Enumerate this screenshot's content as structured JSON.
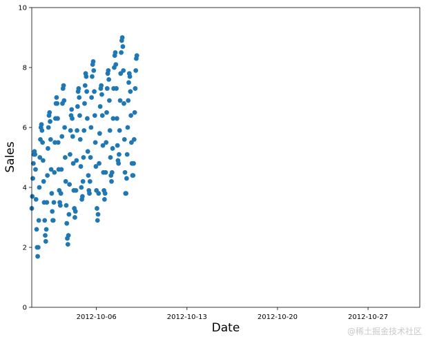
{
  "chart_data": {
    "type": "scatter",
    "title": "",
    "xlabel": "Date",
    "ylabel": "Sales",
    "x_start": "2012-10-01 00:00",
    "x_end": "2012-10-31 00:00",
    "xlim": [
      "2012-10-01",
      "2012-10-31"
    ],
    "ylim": [
      0,
      10
    ],
    "x_tick_labels": [
      "2012-10-06",
      "2012-10-13",
      "2012-10-20",
      "2012-10-27"
    ],
    "y_tick_labels": [
      "0",
      "2",
      "4",
      "6",
      "8",
      "10"
    ],
    "marker_color": "#1f77b4",
    "grid": false,
    "hourly_values": [
      3.3,
      3.7,
      4.3,
      4.8,
      5.1,
      5.2,
      5.1,
      4.6,
      3.6,
      2.6,
      2.0,
      1.7,
      2.0,
      2.9,
      4.0,
      5.0,
      5.6,
      6.0,
      6.1,
      5.9,
      5.5,
      4.9,
      4.2,
      3.5,
      2.9,
      2.4,
      2.2,
      2.6,
      3.5,
      4.4,
      5.3,
      6.0,
      6.4,
      6.5,
      6.2,
      5.6,
      4.6,
      3.8,
      3.2,
      2.9,
      2.9,
      3.5,
      4.5,
      5.5,
      6.3,
      6.8,
      7.0,
      6.8,
      6.3,
      5.5,
      4.6,
      3.9,
      3.5,
      3.4,
      3.8,
      4.6,
      5.7,
      6.8,
      7.3,
      7.4,
      6.9,
      6.0,
      5.0,
      4.2,
      3.4,
      2.8,
      2.3,
      2.1,
      2.4,
      3.1,
      4.1,
      5.1,
      5.9,
      6.4,
      6.6,
      6.3,
      5.7,
      4.8,
      3.9,
      3.3,
      3.0,
      3.2,
      3.9,
      4.9,
      5.9,
      6.7,
      7.2,
      7.3,
      7.0,
      6.4,
      5.6,
      4.7,
      4.0,
      3.6,
      3.7,
      4.2,
      5.0,
      5.9,
      6.8,
      7.4,
      7.8,
      7.7,
      7.2,
      6.3,
      5.2,
      4.4,
      3.9,
      3.8,
      4.2,
      5.0,
      6.0,
      7.0,
      7.7,
      8.1,
      8.2,
      7.9,
      7.2,
      6.4,
      5.5,
      4.7,
      3.9,
      3.3,
      2.9,
      3.1,
      3.8,
      4.8,
      5.8,
      6.7,
      7.3,
      7.4,
      7.1,
      6.4,
      5.4,
      4.5,
      3.9,
      3.6,
      3.8,
      4.5,
      5.5,
      6.5,
      7.3,
      7.8,
      7.9,
      7.6,
      6.9,
      5.9,
      5.0,
      4.4,
      4.2,
      4.5,
      5.3,
      6.3,
      7.3,
      8.0,
      8.4,
      8.5,
      8.1,
      7.3,
      6.3,
      5.4,
      4.9,
      4.8,
      5.1,
      5.9,
      6.9,
      7.8,
      8.5,
      8.9,
      9.0,
      8.7,
      7.9,
      6.8,
      5.6,
      4.5,
      3.8,
      3.8,
      4.3,
      5.1,
      6.0,
      6.9,
      7.5,
      7.8,
      7.7,
      7.2,
      6.4,
      5.5,
      4.8,
      4.4,
      4.4,
      4.8,
      5.6,
      6.5,
      7.3,
      7.9,
      8.3,
      8.4
    ]
  },
  "watermark": "@稀土掘金技术社区"
}
